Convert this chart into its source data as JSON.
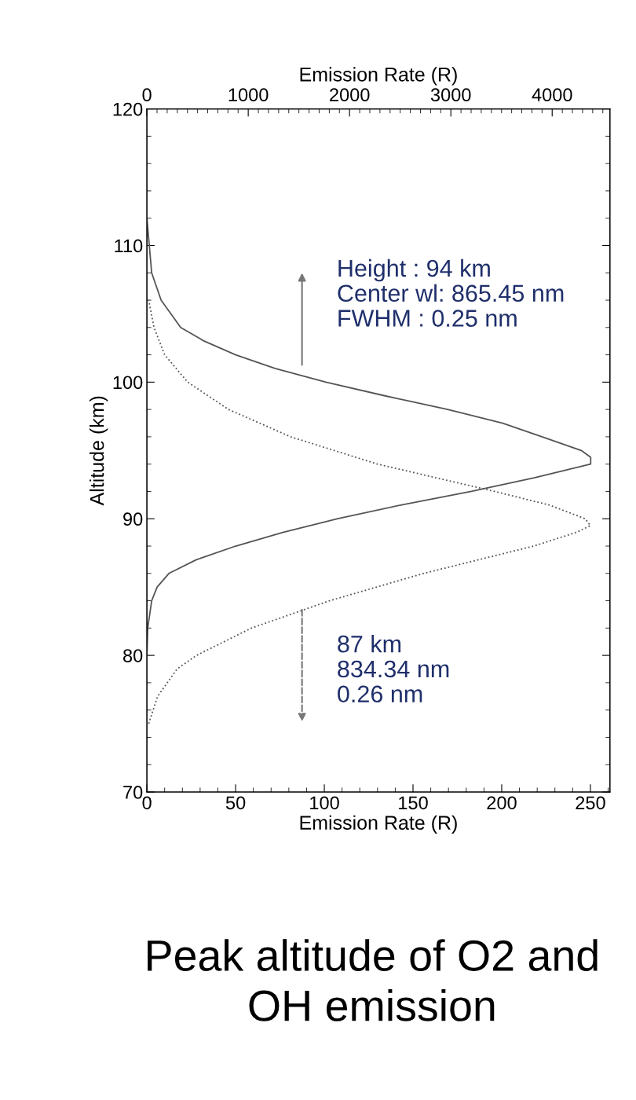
{
  "chart_data": {
    "type": "line",
    "title": "Peak altitude of O2 and OH emission",
    "xlabel": "Emission Rate (R)",
    "x2label": "Emission Rate (R)",
    "ylabel": "Altitude (km)",
    "xlim": [
      0,
      261
    ],
    "xticks": [
      0,
      50,
      100,
      150,
      200,
      250
    ],
    "x2lim": [
      0,
      4570
    ],
    "x2ticks": [
      0,
      1000,
      2000,
      3000,
      4000
    ],
    "ylim": [
      70,
      120
    ],
    "yticks": [
      70,
      80,
      90,
      100,
      110,
      120
    ],
    "grid": false,
    "legend": false,
    "marker": "none",
    "series": [
      {
        "color": "#555555",
        "axis": "x2",
        "line_style": "solid",
        "values": [
          80,
          82,
          84,
          85,
          86,
          87,
          88,
          89,
          90,
          91,
          92,
          93,
          94,
          94.5,
          95,
          96,
          97,
          98,
          99,
          100,
          101,
          102,
          103,
          104,
          106,
          108,
          112
        ],
        "x": [
          0,
          8,
          47,
          101,
          217,
          488,
          876,
          1341,
          1884,
          2504,
          3202,
          3822,
          4380,
          4380,
          4287,
          3899,
          3512,
          2969,
          2349,
          1767,
          1264,
          876,
          566,
          333,
          140,
          47,
          0
        ]
      },
      {
        "color": "#555555",
        "line_style": "dotted",
        "values": [
          75,
          77,
          79,
          80,
          82,
          84,
          86,
          87,
          88,
          89,
          89.5,
          90,
          91,
          92,
          93,
          94,
          96,
          98,
          100,
          102,
          104,
          106
        ],
        "x": [
          1,
          6,
          17,
          28,
          59,
          103,
          156,
          187,
          218,
          242,
          250,
          247,
          227,
          196,
          163,
          130,
          81,
          46,
          23,
          10,
          4,
          1
        ]
      }
    ],
    "annotations": [
      "Height : 94 km\nCenter wl: 865.45 nm\nFWHM : 0.25 nm",
      "87 km\n834.34 nm\n0.26 nm"
    ]
  }
}
